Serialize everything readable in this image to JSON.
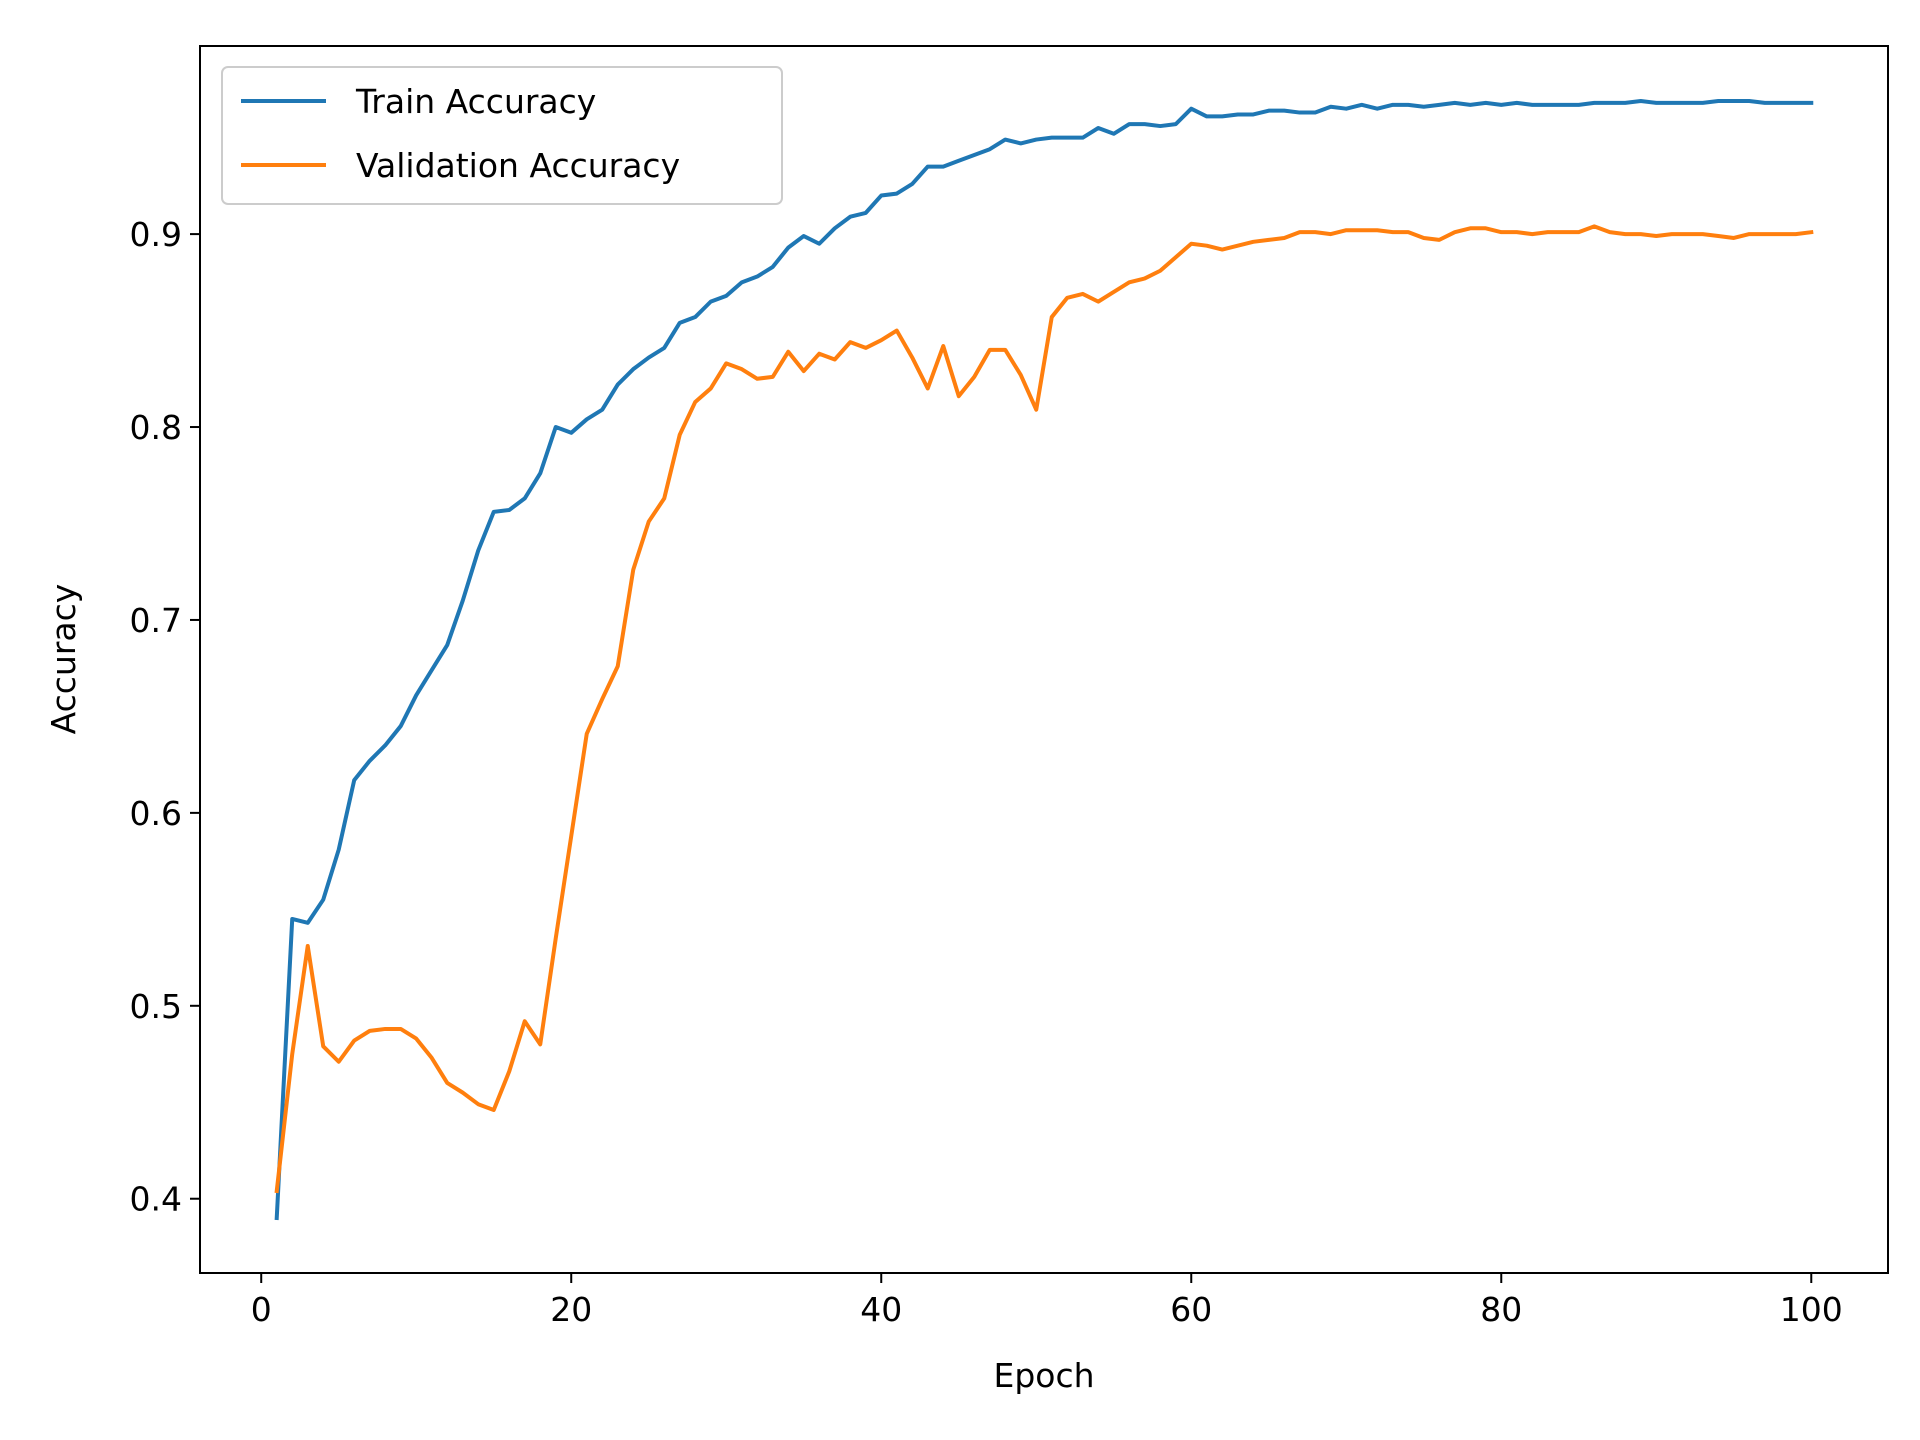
{
  "chart_data": {
    "type": "line",
    "title": "",
    "xlabel": "Epoch",
    "ylabel": "Accuracy",
    "xlim": [
      -3.95,
      104.95
    ],
    "ylim": [
      0.3615,
      0.9975
    ],
    "xticks": [
      0,
      20,
      40,
      60,
      80,
      100
    ],
    "yticks": [
      0.4,
      0.5,
      0.6,
      0.7,
      0.8,
      0.9
    ],
    "xtick_labels": [
      "0",
      "20",
      "40",
      "60",
      "80",
      "100"
    ],
    "ytick_labels": [
      "0.4",
      "0.5",
      "0.6",
      "0.7",
      "0.8",
      "0.9"
    ],
    "grid": false,
    "legend_position": "top-left",
    "x": [
      1,
      2,
      3,
      4,
      5,
      6,
      7,
      8,
      9,
      10,
      11,
      12,
      13,
      14,
      15,
      16,
      17,
      18,
      19,
      20,
      21,
      22,
      23,
      24,
      25,
      26,
      27,
      28,
      29,
      30,
      31,
      32,
      33,
      34,
      35,
      36,
      37,
      38,
      39,
      40,
      41,
      42,
      43,
      44,
      45,
      46,
      47,
      48,
      49,
      50,
      51,
      52,
      53,
      54,
      55,
      56,
      57,
      58,
      59,
      60,
      61,
      62,
      63,
      64,
      65,
      66,
      67,
      68,
      69,
      70,
      71,
      72,
      73,
      74,
      75,
      76,
      77,
      78,
      79,
      80,
      81,
      82,
      83,
      84,
      85,
      86,
      87,
      88,
      89,
      90,
      91,
      92,
      93,
      94,
      95,
      96,
      97,
      98,
      99,
      100
    ],
    "series": [
      {
        "name": "Train Accuracy",
        "color": "#1f77b4",
        "values": [
          0.39,
          0.545,
          0.543,
          0.555,
          0.581,
          0.617,
          0.627,
          0.635,
          0.645,
          0.661,
          0.674,
          0.687,
          0.71,
          0.736,
          0.756,
          0.757,
          0.763,
          0.776,
          0.8,
          0.797,
          0.804,
          0.809,
          0.822,
          0.83,
          0.836,
          0.841,
          0.854,
          0.857,
          0.865,
          0.868,
          0.875,
          0.878,
          0.883,
          0.893,
          0.899,
          0.895,
          0.903,
          0.909,
          0.911,
          0.92,
          0.921,
          0.926,
          0.935,
          0.935,
          0.938,
          0.941,
          0.944,
          0.949,
          0.947,
          0.949,
          0.95,
          0.95,
          0.95,
          0.955,
          0.952,
          0.957,
          0.957,
          0.956,
          0.957,
          0.965,
          0.961,
          0.961,
          0.962,
          0.962,
          0.964,
          0.964,
          0.963,
          0.963,
          0.966,
          0.965,
          0.967,
          0.965,
          0.967,
          0.967,
          0.966,
          0.967,
          0.968,
          0.967,
          0.968,
          0.967,
          0.968,
          0.967,
          0.967,
          0.967,
          0.967,
          0.968,
          0.968,
          0.968,
          0.969,
          0.968,
          0.968,
          0.968,
          0.968,
          0.969,
          0.969,
          0.969,
          0.968,
          0.968,
          0.968,
          0.968
        ]
      },
      {
        "name": "Validation Accuracy",
        "color": "#ff7f0e",
        "values": [
          0.404,
          0.475,
          0.531,
          0.479,
          0.471,
          0.482,
          0.487,
          0.488,
          0.488,
          0.483,
          0.473,
          0.46,
          0.455,
          0.449,
          0.446,
          0.466,
          0.492,
          0.48,
          0.535,
          0.588,
          0.641,
          0.659,
          0.676,
          0.726,
          0.751,
          0.763,
          0.796,
          0.813,
          0.82,
          0.833,
          0.83,
          0.825,
          0.826,
          0.839,
          0.829,
          0.838,
          0.835,
          0.844,
          0.841,
          0.845,
          0.85,
          0.836,
          0.82,
          0.842,
          0.816,
          0.826,
          0.84,
          0.84,
          0.827,
          0.809,
          0.857,
          0.867,
          0.869,
          0.865,
          0.87,
          0.875,
          0.877,
          0.881,
          0.888,
          0.895,
          0.894,
          0.892,
          0.894,
          0.896,
          0.897,
          0.898,
          0.901,
          0.901,
          0.9,
          0.902,
          0.902,
          0.902,
          0.901,
          0.901,
          0.898,
          0.897,
          0.901,
          0.903,
          0.903,
          0.901,
          0.901,
          0.9,
          0.901,
          0.901,
          0.901,
          0.904,
          0.901,
          0.9,
          0.9,
          0.899,
          0.9,
          0.9,
          0.9,
          0.899,
          0.898,
          0.9,
          0.9,
          0.9,
          0.9,
          0.901
        ]
      }
    ]
  }
}
